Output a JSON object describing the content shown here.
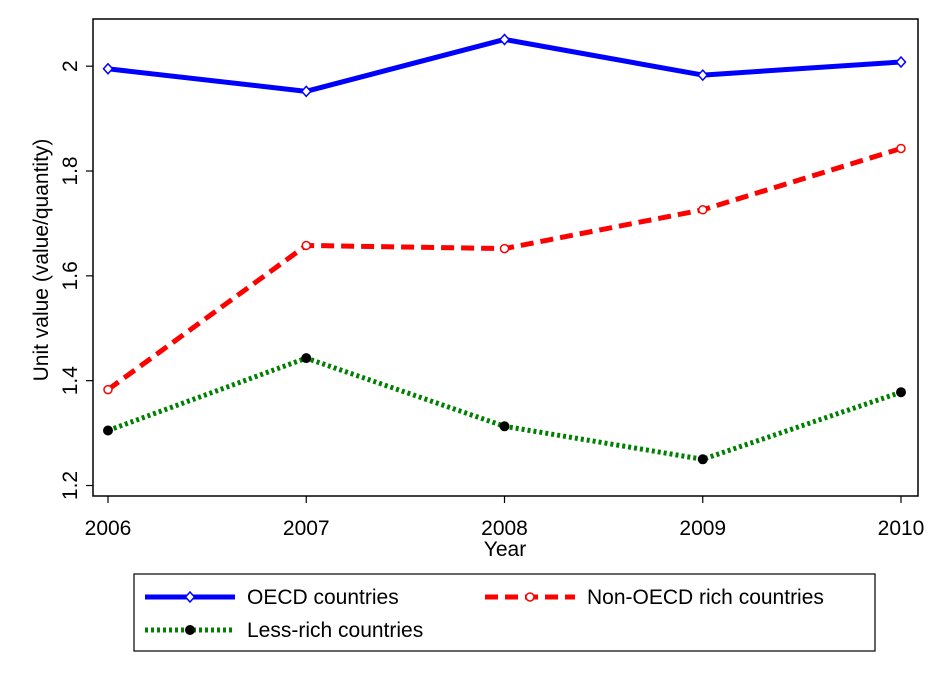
{
  "chart_data": {
    "type": "line",
    "title": "",
    "xlabel": "Year",
    "ylabel": "Unit value (value/quantity)",
    "x": [
      2006,
      2007,
      2008,
      2009,
      2010
    ],
    "x_tick_labels": [
      "2006",
      "2007",
      "2008",
      "2009",
      "2010"
    ],
    "xlim": [
      2006,
      2010
    ],
    "y_ticks": [
      1.2,
      1.4,
      1.6,
      1.8,
      2.0
    ],
    "y_tick_labels": [
      "1.2",
      "1.4",
      "1.6",
      "1.8",
      "2"
    ],
    "ylim": [
      1.18,
      2.09
    ],
    "grid": false,
    "legend_position": "bottom",
    "series": [
      {
        "name": "OECD countries",
        "values": [
          1.995,
          1.952,
          2.051,
          1.983,
          2.008
        ],
        "color": "#0000ff",
        "line_style": "solid",
        "marker": "diamond-hollow"
      },
      {
        "name": "Non-OECD rich countries",
        "values": [
          1.383,
          1.658,
          1.652,
          1.726,
          1.843
        ],
        "color": "#ff0000",
        "line_style": "dashed",
        "marker": "circle-hollow"
      },
      {
        "name": "Less-rich countries",
        "values": [
          1.305,
          1.443,
          1.313,
          1.25,
          1.378
        ],
        "color": "#008000",
        "line_style": "dotted",
        "marker": "circle-filled-black"
      }
    ]
  }
}
